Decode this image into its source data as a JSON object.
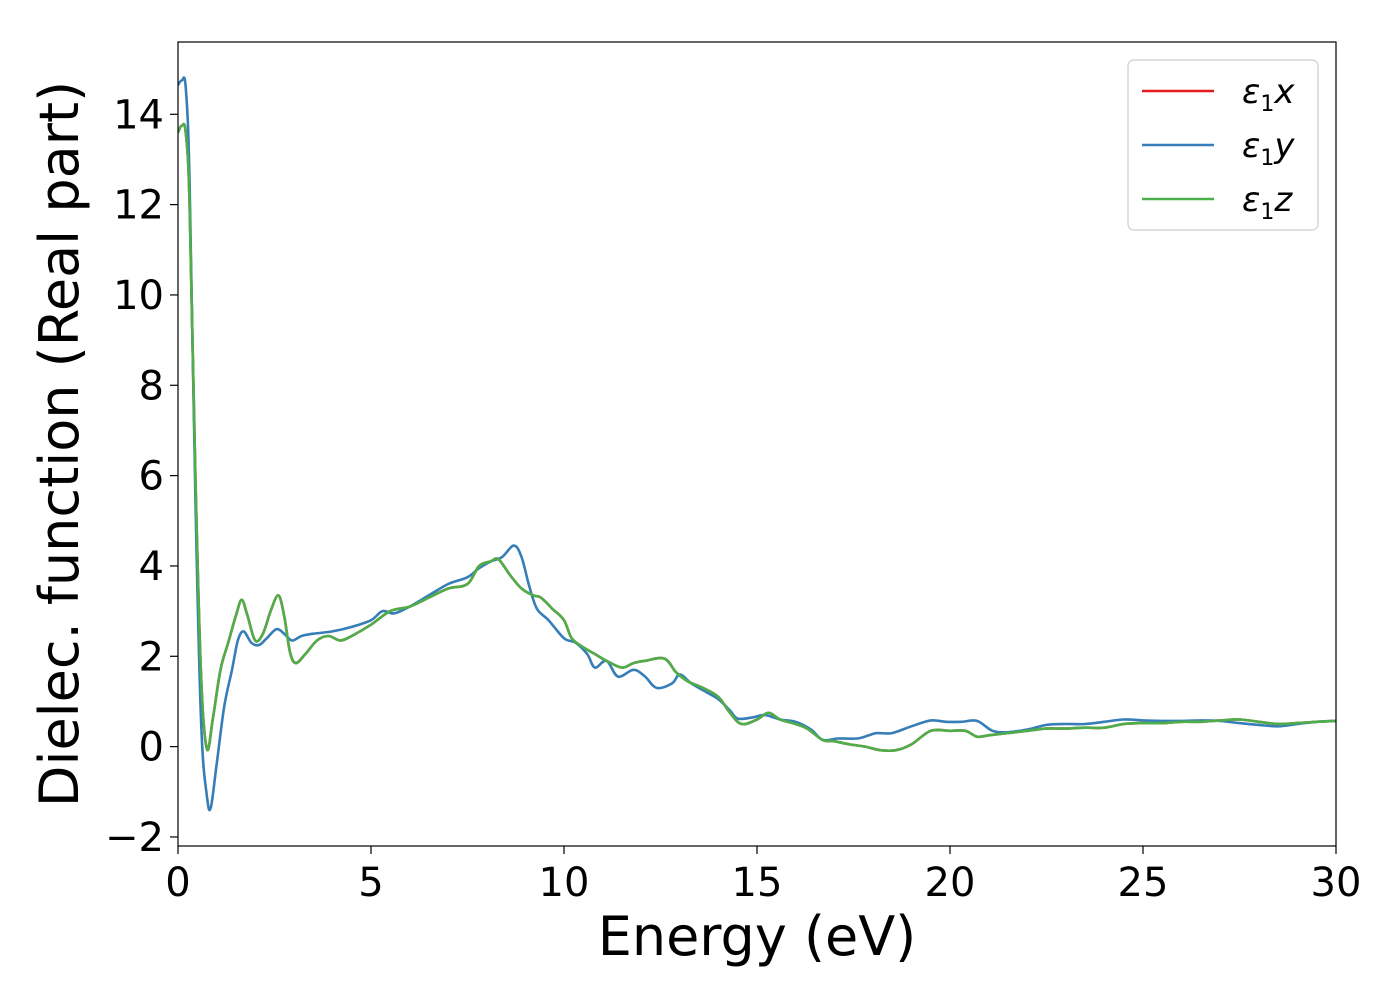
{
  "chart_data": {
    "type": "line",
    "xlabel": "Energy (eV)",
    "ylabel": "Dielec. function (Real part)",
    "xlim": [
      0,
      30
    ],
    "ylim": [
      -2.2,
      15.6
    ],
    "xticks": [
      0,
      5,
      10,
      15,
      20,
      25,
      30
    ],
    "xtick_labels": [
      "0",
      "5",
      "10",
      "15",
      "20",
      "25",
      "30"
    ],
    "yticks": [
      -2,
      0,
      2,
      4,
      6,
      8,
      10,
      12,
      14
    ],
    "ytick_labels": [
      "−2",
      "0",
      "2",
      "4",
      "6",
      "8",
      "10",
      "12",
      "14"
    ],
    "grid": false,
    "legend_position": "top-right",
    "series": [
      {
        "name": "ε1x",
        "label_base": "ε",
        "label_sub": "1",
        "label_tail": "x",
        "color": "#e41a1c",
        "points": [
          [
            0,
            13.6
          ],
          [
            0.1,
            13.75
          ],
          [
            0.2,
            13.6
          ],
          [
            0.3,
            12.0
          ],
          [
            0.45,
            6.0
          ],
          [
            0.6,
            1.5
          ],
          [
            0.75,
            -0.05
          ],
          [
            0.9,
            0.6
          ],
          [
            1.1,
            1.7
          ],
          [
            1.3,
            2.3
          ],
          [
            1.5,
            2.9
          ],
          [
            1.65,
            3.25
          ],
          [
            1.8,
            2.9
          ],
          [
            2.0,
            2.35
          ],
          [
            2.2,
            2.5
          ],
          [
            2.4,
            3.0
          ],
          [
            2.6,
            3.35
          ],
          [
            2.75,
            2.9
          ],
          [
            2.9,
            2.1
          ],
          [
            3.05,
            1.85
          ],
          [
            3.3,
            2.05
          ],
          [
            3.6,
            2.35
          ],
          [
            3.9,
            2.45
          ],
          [
            4.2,
            2.35
          ],
          [
            4.5,
            2.45
          ],
          [
            5.0,
            2.7
          ],
          [
            5.5,
            3.0
          ],
          [
            6.0,
            3.1
          ],
          [
            6.5,
            3.3
          ],
          [
            7.0,
            3.5
          ],
          [
            7.5,
            3.6
          ],
          [
            7.8,
            4.0
          ],
          [
            8.1,
            4.1
          ],
          [
            8.3,
            4.15
          ],
          [
            8.6,
            3.8
          ],
          [
            8.9,
            3.5
          ],
          [
            9.2,
            3.35
          ],
          [
            9.4,
            3.3
          ],
          [
            9.7,
            3.05
          ],
          [
            10.0,
            2.8
          ],
          [
            10.2,
            2.4
          ],
          [
            10.5,
            2.2
          ],
          [
            10.8,
            2.05
          ],
          [
            11.1,
            1.9
          ],
          [
            11.5,
            1.75
          ],
          [
            11.8,
            1.85
          ],
          [
            12.1,
            1.9
          ],
          [
            12.6,
            1.95
          ],
          [
            12.9,
            1.65
          ],
          [
            13.2,
            1.45
          ],
          [
            13.6,
            1.3
          ],
          [
            14.0,
            1.1
          ],
          [
            14.3,
            0.75
          ],
          [
            14.6,
            0.5
          ],
          [
            15.0,
            0.6
          ],
          [
            15.3,
            0.75
          ],
          [
            15.6,
            0.6
          ],
          [
            16.0,
            0.5
          ],
          [
            16.3,
            0.4
          ],
          [
            16.7,
            0.15
          ],
          [
            17.0,
            0.12
          ],
          [
            17.4,
            0.05
          ],
          [
            17.8,
            0.0
          ],
          [
            18.2,
            -0.08
          ],
          [
            18.6,
            -0.08
          ],
          [
            19.0,
            0.05
          ],
          [
            19.5,
            0.35
          ],
          [
            20.0,
            0.35
          ],
          [
            20.4,
            0.35
          ],
          [
            20.7,
            0.22
          ],
          [
            21.0,
            0.25
          ],
          [
            21.5,
            0.3
          ],
          [
            22.0,
            0.35
          ],
          [
            22.5,
            0.4
          ],
          [
            23.0,
            0.4
          ],
          [
            23.5,
            0.42
          ],
          [
            24.0,
            0.42
          ],
          [
            24.5,
            0.5
          ],
          [
            25.0,
            0.52
          ],
          [
            25.5,
            0.52
          ],
          [
            26.0,
            0.55
          ],
          [
            26.5,
            0.55
          ],
          [
            27.0,
            0.58
          ],
          [
            27.5,
            0.6
          ],
          [
            28.0,
            0.55
          ],
          [
            28.5,
            0.5
          ],
          [
            29.0,
            0.52
          ],
          [
            29.5,
            0.55
          ],
          [
            30.0,
            0.57
          ]
        ]
      },
      {
        "name": "ε1y",
        "label_base": "ε",
        "label_sub": "1",
        "label_tail": "y",
        "color": "#377eb8",
        "points": [
          [
            0,
            14.65
          ],
          [
            0.1,
            14.75
          ],
          [
            0.2,
            14.6
          ],
          [
            0.3,
            12.5
          ],
          [
            0.45,
            5.5
          ],
          [
            0.6,
            0.5
          ],
          [
            0.75,
            -1.1
          ],
          [
            0.85,
            -1.35
          ],
          [
            1.0,
            -0.4
          ],
          [
            1.2,
            0.9
          ],
          [
            1.4,
            1.7
          ],
          [
            1.55,
            2.35
          ],
          [
            1.7,
            2.55
          ],
          [
            1.9,
            2.3
          ],
          [
            2.1,
            2.25
          ],
          [
            2.3,
            2.4
          ],
          [
            2.55,
            2.6
          ],
          [
            2.75,
            2.5
          ],
          [
            2.95,
            2.35
          ],
          [
            3.2,
            2.45
          ],
          [
            3.5,
            2.5
          ],
          [
            4.0,
            2.55
          ],
          [
            4.5,
            2.65
          ],
          [
            5.0,
            2.8
          ],
          [
            5.3,
            3.0
          ],
          [
            5.6,
            2.95
          ],
          [
            6.0,
            3.1
          ],
          [
            6.5,
            3.35
          ],
          [
            7.0,
            3.6
          ],
          [
            7.5,
            3.75
          ],
          [
            7.8,
            3.95
          ],
          [
            8.1,
            4.1
          ],
          [
            8.4,
            4.2
          ],
          [
            8.7,
            4.45
          ],
          [
            8.9,
            4.2
          ],
          [
            9.1,
            3.55
          ],
          [
            9.3,
            3.05
          ],
          [
            9.6,
            2.8
          ],
          [
            10.0,
            2.4
          ],
          [
            10.3,
            2.3
          ],
          [
            10.6,
            2.05
          ],
          [
            10.8,
            1.75
          ],
          [
            11.1,
            1.9
          ],
          [
            11.4,
            1.55
          ],
          [
            11.8,
            1.7
          ],
          [
            12.1,
            1.55
          ],
          [
            12.4,
            1.3
          ],
          [
            12.8,
            1.4
          ],
          [
            13.0,
            1.6
          ],
          [
            13.3,
            1.4
          ],
          [
            13.7,
            1.2
          ],
          [
            14.0,
            1.05
          ],
          [
            14.3,
            0.8
          ],
          [
            14.5,
            0.62
          ],
          [
            14.9,
            0.65
          ],
          [
            15.2,
            0.7
          ],
          [
            15.6,
            0.6
          ],
          [
            16.0,
            0.55
          ],
          [
            16.4,
            0.38
          ],
          [
            16.7,
            0.15
          ],
          [
            17.1,
            0.18
          ],
          [
            17.6,
            0.18
          ],
          [
            17.9,
            0.25
          ],
          [
            18.1,
            0.3
          ],
          [
            18.5,
            0.3
          ],
          [
            19.0,
            0.45
          ],
          [
            19.5,
            0.58
          ],
          [
            19.9,
            0.55
          ],
          [
            20.3,
            0.55
          ],
          [
            20.7,
            0.57
          ],
          [
            21.1,
            0.35
          ],
          [
            21.5,
            0.32
          ],
          [
            22.0,
            0.38
          ],
          [
            22.5,
            0.48
          ],
          [
            23.0,
            0.5
          ],
          [
            23.5,
            0.5
          ],
          [
            24.0,
            0.55
          ],
          [
            24.5,
            0.6
          ],
          [
            25.0,
            0.58
          ],
          [
            25.5,
            0.57
          ],
          [
            26.0,
            0.57
          ],
          [
            26.5,
            0.58
          ],
          [
            27.0,
            0.57
          ],
          [
            27.5,
            0.52
          ],
          [
            28.0,
            0.48
          ],
          [
            28.5,
            0.45
          ],
          [
            29.0,
            0.5
          ],
          [
            29.5,
            0.55
          ],
          [
            30.0,
            0.57
          ]
        ]
      },
      {
        "name": "ε1z",
        "label_base": "ε",
        "label_sub": "1",
        "label_tail": "z",
        "color": "#4daf4a",
        "points": [
          [
            0,
            13.6
          ],
          [
            0.1,
            13.75
          ],
          [
            0.2,
            13.6
          ],
          [
            0.3,
            12.0
          ],
          [
            0.45,
            6.0
          ],
          [
            0.6,
            1.5
          ],
          [
            0.75,
            -0.05
          ],
          [
            0.9,
            0.6
          ],
          [
            1.1,
            1.7
          ],
          [
            1.3,
            2.3
          ],
          [
            1.5,
            2.9
          ],
          [
            1.65,
            3.25
          ],
          [
            1.8,
            2.9
          ],
          [
            2.0,
            2.35
          ],
          [
            2.2,
            2.5
          ],
          [
            2.4,
            3.0
          ],
          [
            2.6,
            3.35
          ],
          [
            2.75,
            2.9
          ],
          [
            2.9,
            2.1
          ],
          [
            3.05,
            1.85
          ],
          [
            3.3,
            2.05
          ],
          [
            3.6,
            2.35
          ],
          [
            3.9,
            2.45
          ],
          [
            4.2,
            2.35
          ],
          [
            4.5,
            2.45
          ],
          [
            5.0,
            2.7
          ],
          [
            5.5,
            3.0
          ],
          [
            6.0,
            3.1
          ],
          [
            6.5,
            3.3
          ],
          [
            7.0,
            3.5
          ],
          [
            7.5,
            3.6
          ],
          [
            7.8,
            4.0
          ],
          [
            8.1,
            4.1
          ],
          [
            8.3,
            4.15
          ],
          [
            8.6,
            3.8
          ],
          [
            8.9,
            3.5
          ],
          [
            9.2,
            3.35
          ],
          [
            9.4,
            3.3
          ],
          [
            9.7,
            3.05
          ],
          [
            10.0,
            2.8
          ],
          [
            10.2,
            2.4
          ],
          [
            10.5,
            2.2
          ],
          [
            10.8,
            2.05
          ],
          [
            11.1,
            1.9
          ],
          [
            11.5,
            1.75
          ],
          [
            11.8,
            1.85
          ],
          [
            12.1,
            1.9
          ],
          [
            12.6,
            1.95
          ],
          [
            12.9,
            1.65
          ],
          [
            13.2,
            1.45
          ],
          [
            13.6,
            1.3
          ],
          [
            14.0,
            1.1
          ],
          [
            14.3,
            0.75
          ],
          [
            14.6,
            0.5
          ],
          [
            15.0,
            0.6
          ],
          [
            15.3,
            0.75
          ],
          [
            15.6,
            0.6
          ],
          [
            16.0,
            0.5
          ],
          [
            16.3,
            0.4
          ],
          [
            16.7,
            0.15
          ],
          [
            17.0,
            0.12
          ],
          [
            17.4,
            0.05
          ],
          [
            17.8,
            0.0
          ],
          [
            18.2,
            -0.08
          ],
          [
            18.6,
            -0.08
          ],
          [
            19.0,
            0.05
          ],
          [
            19.5,
            0.35
          ],
          [
            20.0,
            0.35
          ],
          [
            20.4,
            0.35
          ],
          [
            20.7,
            0.22
          ],
          [
            21.0,
            0.25
          ],
          [
            21.5,
            0.3
          ],
          [
            22.0,
            0.35
          ],
          [
            22.5,
            0.4
          ],
          [
            23.0,
            0.4
          ],
          [
            23.5,
            0.42
          ],
          [
            24.0,
            0.42
          ],
          [
            24.5,
            0.5
          ],
          [
            25.0,
            0.52
          ],
          [
            25.5,
            0.52
          ],
          [
            26.0,
            0.55
          ],
          [
            26.5,
            0.55
          ],
          [
            27.0,
            0.58
          ],
          [
            27.5,
            0.6
          ],
          [
            28.0,
            0.55
          ],
          [
            28.5,
            0.5
          ],
          [
            29.0,
            0.52
          ],
          [
            29.5,
            0.55
          ],
          [
            30.0,
            0.57
          ]
        ]
      }
    ]
  }
}
